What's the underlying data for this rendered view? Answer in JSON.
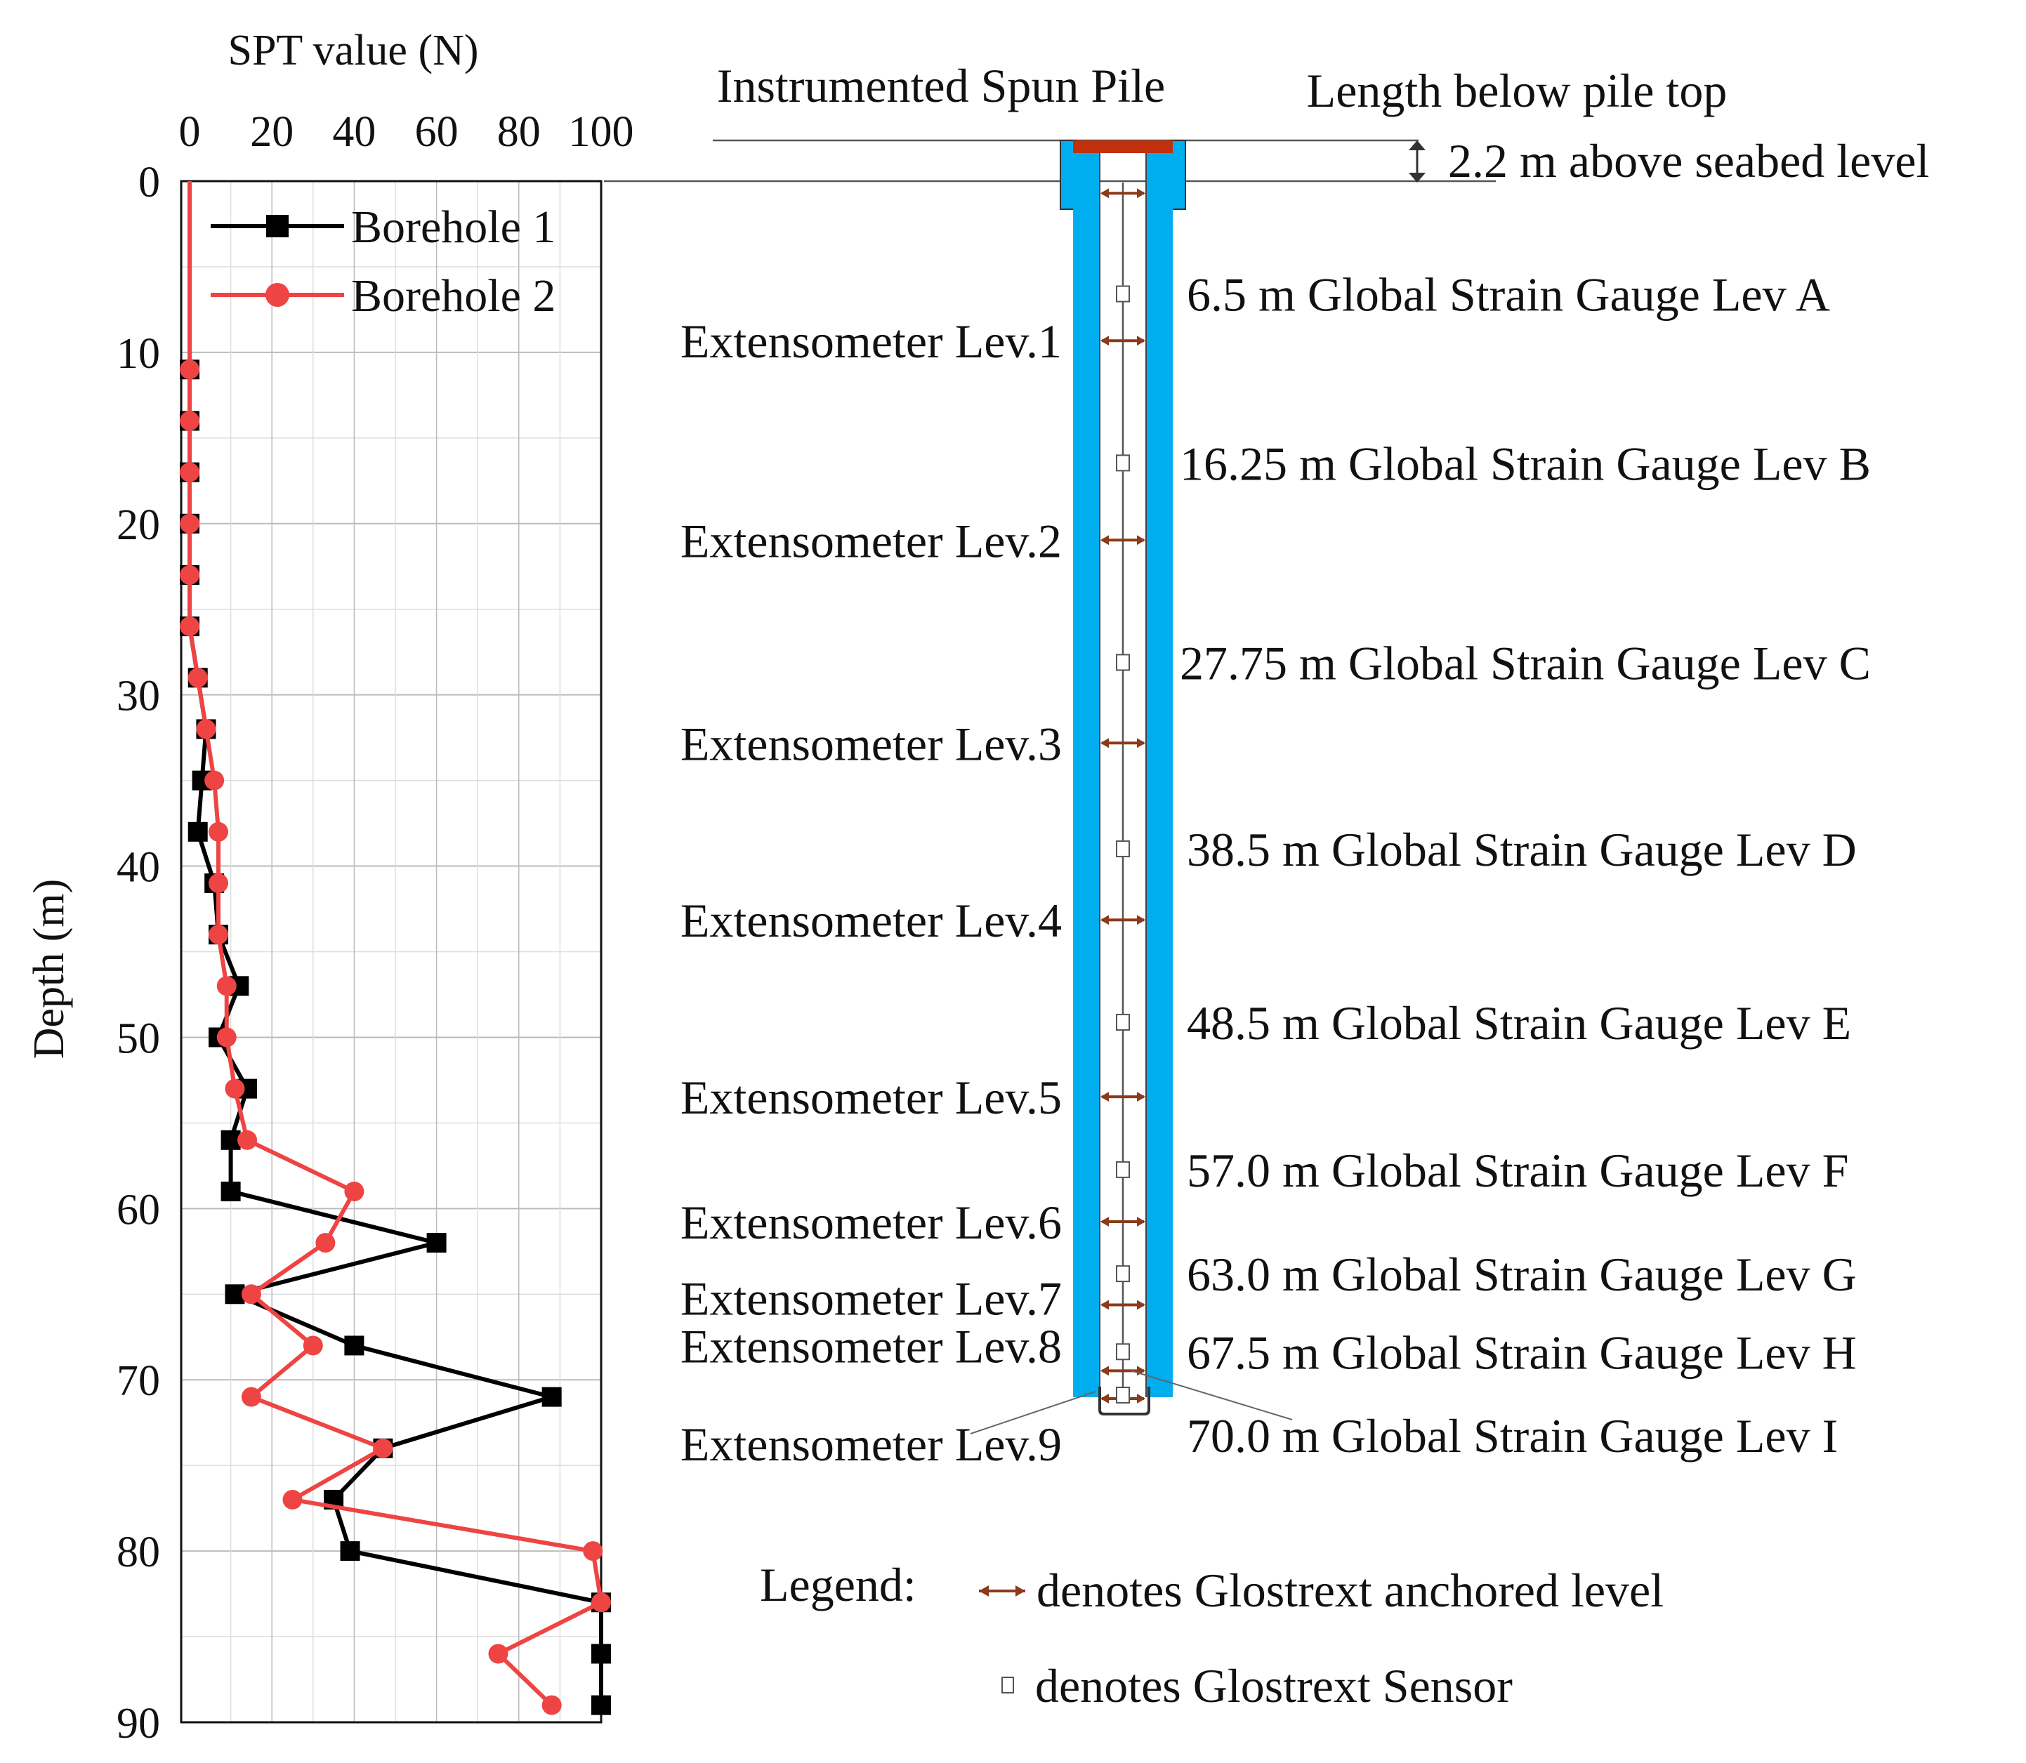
{
  "chart_data": {
    "type": "line",
    "title": "SPT value (N)",
    "xlabel": "SPT value (N)",
    "ylabel": "Depth (m)",
    "xlim": [
      0,
      100
    ],
    "ylim": [
      90,
      0
    ],
    "x_ticks": [
      "0",
      "20",
      "40",
      "60",
      "80",
      "100"
    ],
    "y_ticks": [
      "0",
      "10",
      "20",
      "30",
      "40",
      "50",
      "60",
      "70",
      "80",
      "90"
    ],
    "grid": true,
    "legend_position": "top-right",
    "series": [
      {
        "name": "Borehole 1",
        "color": "#000000",
        "marker": "square",
        "points": [
          {
            "n": 0,
            "depth": 0
          },
          {
            "n": 0,
            "depth": 11
          },
          {
            "n": 0,
            "depth": 14
          },
          {
            "n": 0,
            "depth": 17
          },
          {
            "n": 0,
            "depth": 20
          },
          {
            "n": 0,
            "depth": 23
          },
          {
            "n": 0,
            "depth": 26
          },
          {
            "n": 2,
            "depth": 29
          },
          {
            "n": 4,
            "depth": 32
          },
          {
            "n": 3,
            "depth": 35
          },
          {
            "n": 2,
            "depth": 38
          },
          {
            "n": 6,
            "depth": 41
          },
          {
            "n": 7,
            "depth": 44
          },
          {
            "n": 12,
            "depth": 47
          },
          {
            "n": 7,
            "depth": 50
          },
          {
            "n": 14,
            "depth": 53
          },
          {
            "n": 10,
            "depth": 56
          },
          {
            "n": 10,
            "depth": 59
          },
          {
            "n": 60,
            "depth": 62
          },
          {
            "n": 11,
            "depth": 65
          },
          {
            "n": 40,
            "depth": 68
          },
          {
            "n": 88,
            "depth": 71
          },
          {
            "n": 47,
            "depth": 74
          },
          {
            "n": 35,
            "depth": 77
          },
          {
            "n": 39,
            "depth": 80
          },
          {
            "n": 100,
            "depth": 83
          },
          {
            "n": 100,
            "depth": 86
          },
          {
            "n": 100,
            "depth": 89
          }
        ]
      },
      {
        "name": "Borehole 2",
        "color": "#ee4444",
        "marker": "circle",
        "points": [
          {
            "n": 0,
            "depth": 0
          },
          {
            "n": 0,
            "depth": 11
          },
          {
            "n": 0,
            "depth": 14
          },
          {
            "n": 0,
            "depth": 17
          },
          {
            "n": 0,
            "depth": 20
          },
          {
            "n": 0,
            "depth": 23
          },
          {
            "n": 0,
            "depth": 26
          },
          {
            "n": 2,
            "depth": 29
          },
          {
            "n": 4,
            "depth": 32
          },
          {
            "n": 6,
            "depth": 35
          },
          {
            "n": 7,
            "depth": 38
          },
          {
            "n": 7,
            "depth": 41
          },
          {
            "n": 7,
            "depth": 44
          },
          {
            "n": 9,
            "depth": 47
          },
          {
            "n": 9,
            "depth": 50
          },
          {
            "n": 11,
            "depth": 53
          },
          {
            "n": 14,
            "depth": 56
          },
          {
            "n": 40,
            "depth": 59
          },
          {
            "n": 33,
            "depth": 62
          },
          {
            "n": 15,
            "depth": 65
          },
          {
            "n": 30,
            "depth": 68
          },
          {
            "n": 15,
            "depth": 71
          },
          {
            "n": 47,
            "depth": 74
          },
          {
            "n": 25,
            "depth": 77
          },
          {
            "n": 98,
            "depth": 80
          },
          {
            "n": 100,
            "depth": 83
          },
          {
            "n": 75,
            "depth": 86
          },
          {
            "n": 88,
            "depth": 89
          }
        ]
      }
    ]
  },
  "pile": {
    "title": "Instrumented Spun Pile",
    "length_header": "Length below pile top",
    "above_seabed": "2.2 m above seabed level",
    "strain_gauges": [
      {
        "depth": 6.5,
        "label": "6.5 m Global Strain Gauge Lev A"
      },
      {
        "depth": 16.25,
        "label": "16.25 m Global Strain Gauge Lev B"
      },
      {
        "depth": 27.75,
        "label": "27.75 m Global Strain Gauge Lev C"
      },
      {
        "depth": 38.5,
        "label": "38.5 m Global Strain Gauge Lev D"
      },
      {
        "depth": 48.5,
        "label": "48.5 m Global Strain Gauge Lev E"
      },
      {
        "depth": 57.0,
        "label": "57.0 m Global Strain Gauge Lev F"
      },
      {
        "depth": 63.0,
        "label": "63.0 m Global Strain Gauge Lev G"
      },
      {
        "depth": 67.5,
        "label": "67.5 m Global Strain Gauge Lev H"
      },
      {
        "depth": 70.0,
        "label": "70.0 m Global Strain Gauge Lev I"
      }
    ],
    "extensometers": [
      {
        "depth": 0.7,
        "label": ""
      },
      {
        "depth": 9.2,
        "label": "Extensometer Lev.1"
      },
      {
        "depth": 20.7,
        "label": "Extensometer Lev.2"
      },
      {
        "depth": 32.4,
        "label": "Extensometer Lev.3"
      },
      {
        "depth": 42.6,
        "label": "Extensometer Lev.4"
      },
      {
        "depth": 52.8,
        "label": "Extensometer Lev.5"
      },
      {
        "depth": 60.0,
        "label": "Extensometer Lev.6"
      },
      {
        "depth": 64.8,
        "label": "Extensometer Lev.7"
      },
      {
        "depth": 68.6,
        "label": "Extensometer Lev.8"
      },
      {
        "depth": 70.2,
        "label": "Extensometer Lev.9"
      }
    ],
    "legend_title": "Legend:",
    "legend_anchor": "denotes Glostrext anchored level",
    "legend_sensor": "denotes Glostrext Sensor"
  },
  "colors": {
    "pile_wall": "#00aeef",
    "pile_cap": "#c0300c",
    "anchor_arrow": "#8b3a1a",
    "borehole1": "#000000",
    "borehole2": "#ee4444"
  }
}
